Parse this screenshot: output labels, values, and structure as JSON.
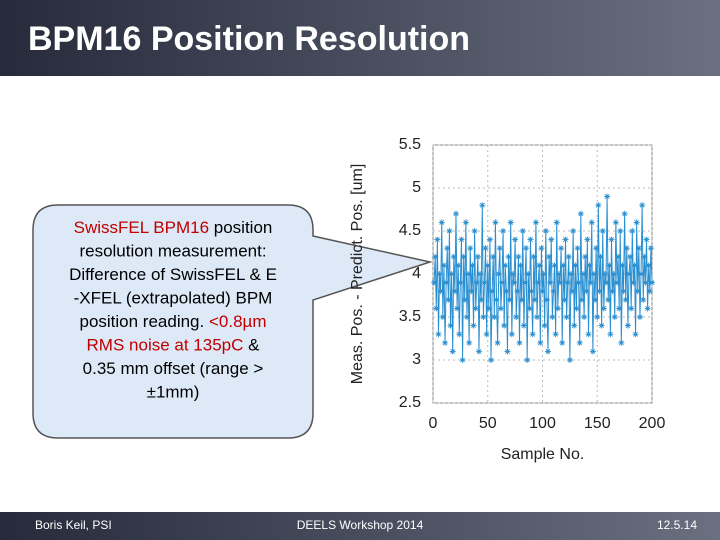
{
  "slide": {
    "title": "BPM16 Position Resolution",
    "callout": [
      [
        {
          "text": "SwissFEL BPM16",
          "color": "#c00000"
        },
        {
          "text": " position"
        }
      ],
      [
        {
          "text": "resolution measurement:"
        }
      ],
      [
        {
          "text": "Difference of SwissFEL & E"
        }
      ],
      [
        {
          "text": "-XFEL (extrapolated) BPM"
        }
      ],
      [
        {
          "text": "position reading. "
        },
        {
          "text": "<0.8µm",
          "color": "#c00000"
        }
      ],
      [
        {
          "text": "RMS noise at 135pC",
          "color": "#c00000"
        },
        {
          "text": " &"
        }
      ],
      [
        {
          "text": "0.35 mm offset (range >"
        }
      ],
      [
        {
          "text": "±1mm)"
        }
      ]
    ],
    "footer": {
      "left": "Boris Keil, PSI",
      "center": "DEELS Workshop 2014",
      "right": "12.5.14"
    }
  },
  "chart_data": {
    "type": "line",
    "xlabel": "Sample No.",
    "ylabel": "Meas. Pos. - Predict. Pos. [um]",
    "xlim": [
      0,
      200
    ],
    "xticks": [
      0,
      50,
      100,
      150,
      200
    ],
    "ylim": [
      2.5,
      5.5
    ],
    "yticks": [
      2.5,
      3,
      3.5,
      4,
      4.5,
      5,
      5.5
    ],
    "grid": true,
    "x": [
      1,
      2,
      3,
      4,
      5,
      6,
      7,
      8,
      9,
      10,
      11,
      12,
      13,
      14,
      15,
      16,
      17,
      18,
      19,
      20,
      21,
      22,
      23,
      24,
      25,
      26,
      27,
      28,
      29,
      30,
      31,
      32,
      33,
      34,
      35,
      36,
      37,
      38,
      39,
      40,
      41,
      42,
      43,
      44,
      45,
      46,
      47,
      48,
      49,
      50,
      51,
      52,
      53,
      54,
      55,
      56,
      57,
      58,
      59,
      60,
      61,
      62,
      63,
      64,
      65,
      66,
      67,
      68,
      69,
      70,
      71,
      72,
      73,
      74,
      75,
      76,
      77,
      78,
      79,
      80,
      81,
      82,
      83,
      84,
      85,
      86,
      87,
      88,
      89,
      90,
      91,
      92,
      93,
      94,
      95,
      96,
      97,
      98,
      99,
      100,
      101,
      102,
      103,
      104,
      105,
      106,
      107,
      108,
      109,
      110,
      111,
      112,
      113,
      114,
      115,
      116,
      117,
      118,
      119,
      120,
      121,
      122,
      123,
      124,
      125,
      126,
      127,
      128,
      129,
      130,
      131,
      132,
      133,
      134,
      135,
      136,
      137,
      138,
      139,
      140,
      141,
      142,
      143,
      144,
      145,
      146,
      147,
      148,
      149,
      150,
      151,
      152,
      153,
      154,
      155,
      156,
      157,
      158,
      159,
      160,
      161,
      162,
      163,
      164,
      165,
      166,
      167,
      168,
      169,
      170,
      171,
      172,
      173,
      174,
      175,
      176,
      177,
      178,
      179,
      180,
      181,
      182,
      183,
      184,
      185,
      186,
      187,
      188,
      189,
      190,
      191,
      192,
      193,
      194,
      195,
      196,
      197,
      198,
      199,
      200
    ],
    "series": [
      {
        "color": "#2a8fd0",
        "values": [
          3.9,
          4.2,
          3.6,
          4.4,
          3.3,
          4.0,
          3.8,
          4.6,
          3.5,
          4.1,
          3.2,
          3.9,
          4.3,
          3.7,
          4.5,
          3.4,
          4.0,
          3.1,
          4.2,
          3.8,
          4.7,
          3.6,
          4.1,
          3.3,
          3.9,
          4.4,
          3.0,
          4.2,
          3.7,
          4.6,
          3.5,
          4.0,
          3.2,
          4.3,
          3.8,
          4.1,
          3.4,
          4.5,
          3.6,
          3.9,
          4.2,
          3.1,
          4.0,
          3.7,
          4.8,
          3.5,
          3.9,
          4.3,
          3.3,
          4.1,
          3.6,
          4.4,
          3.0,
          3.8,
          4.2,
          3.5,
          4.6,
          3.7,
          3.2,
          4.0,
          4.3,
          3.6,
          3.9,
          4.5,
          3.4,
          4.1,
          3.8,
          3.1,
          4.2,
          3.7,
          4.6,
          3.3,
          4.0,
          3.9,
          4.4,
          3.5,
          3.8,
          4.2,
          3.2,
          4.1,
          3.7,
          4.5,
          3.4,
          3.9,
          4.3,
          3.0,
          4.0,
          3.6,
          4.4,
          3.8,
          3.3,
          4.2,
          3.7,
          4.6,
          3.5,
          3.9,
          4.1,
          3.2,
          4.3,
          3.8,
          4.0,
          3.4,
          4.5,
          3.7,
          3.1,
          4.2,
          3.9,
          4.4,
          3.5,
          3.8,
          4.1,
          3.3,
          4.6,
          3.6,
          4.0,
          3.9,
          4.3,
          3.2,
          4.1,
          3.7,
          4.4,
          3.5,
          3.9,
          4.2,
          3.0,
          4.0,
          3.8,
          4.5,
          3.4,
          4.1,
          3.6,
          4.3,
          3.9,
          3.2,
          4.7,
          3.7,
          4.0,
          3.5,
          4.2,
          3.8,
          4.4,
          3.3,
          4.1,
          3.9,
          4.6,
          3.1,
          4.0,
          3.7,
          4.3,
          3.5,
          4.8,
          3.8,
          4.2,
          3.4,
          4.5,
          3.6,
          4.0,
          3.9,
          4.9,
          3.7,
          4.1,
          3.3,
          4.4,
          3.8,
          4.0,
          3.5,
          4.6,
          3.9,
          4.2,
          3.6,
          4.5,
          3.2,
          4.1,
          3.8,
          4.7,
          3.7,
          4.3,
          3.4,
          4.0,
          4.2,
          3.6,
          4.5,
          3.9,
          4.1,
          3.3,
          4.6,
          3.8,
          4.3,
          3.5,
          4.0,
          4.8,
          3.7,
          4.2,
          3.9,
          4.4,
          3.6,
          4.1,
          3.8,
          4.3,
          3.9
        ]
      }
    ]
  }
}
